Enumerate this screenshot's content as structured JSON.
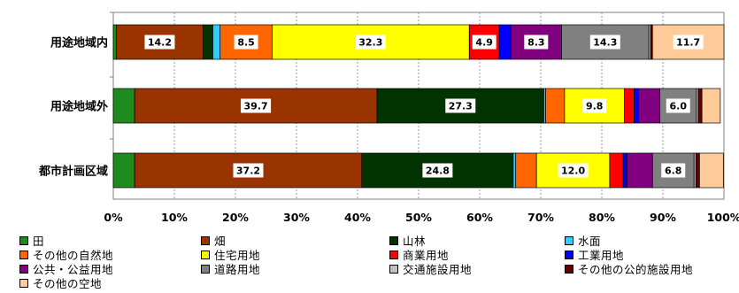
{
  "chart_data": {
    "type": "bar",
    "orientation": "horizontal",
    "stacked": true,
    "percent": true,
    "categories": [
      "用途地域内",
      "用途地域外",
      "都市計画区域"
    ],
    "xlim": [
      0,
      100
    ],
    "x_ticks": [
      "0%",
      "10%",
      "20%",
      "30%",
      "40%",
      "50%",
      "60%",
      "70%",
      "80%",
      "90%",
      "100%"
    ],
    "grid": "vertical dashed",
    "legend_position": "bottom",
    "series": [
      {
        "name": "田",
        "color": "#1f8b1f",
        "values": [
          0.5,
          3.5,
          3.5
        ]
      },
      {
        "name": "畑",
        "color": "#993300",
        "values": [
          14.2,
          39.7,
          37.2
        ]
      },
      {
        "name": "山林",
        "color": "#003300",
        "values": [
          1.6,
          27.3,
          24.8
        ]
      },
      {
        "name": "水面",
        "color": "#33ccff",
        "values": [
          1.2,
          0.3,
          0.4
        ]
      },
      {
        "name": "その他の自然地",
        "color": "#ff6600",
        "values": [
          8.5,
          3.1,
          3.4
        ]
      },
      {
        "name": "住宅用地",
        "color": "#ffff00",
        "values": [
          32.3,
          9.8,
          12.0
        ]
      },
      {
        "name": "商業用地",
        "color": "#ff0000",
        "values": [
          4.9,
          1.6,
          2.2
        ]
      },
      {
        "name": "工業用地",
        "color": "#0000ff",
        "values": [
          1.9,
          0.7,
          0.6
        ]
      },
      {
        "name": "公共・公益用地",
        "color": "#800080",
        "values": [
          8.3,
          3.5,
          4.2
        ]
      },
      {
        "name": "道路用地",
        "color": "#808080",
        "values": [
          14.3,
          6.0,
          6.8
        ]
      },
      {
        "name": "交通施設用地",
        "color": "#c0c0c0",
        "values": [
          0.3,
          0.3,
          0.3
        ]
      },
      {
        "name": "その他の公的施設用地",
        "color": "#660000",
        "values": [
          0.3,
          0.6,
          0.6
        ]
      },
      {
        "name": "その他の空地",
        "color": "#ffcc99",
        "values": [
          11.7,
          3.0,
          3.9
        ]
      }
    ],
    "data_labels": [
      {
        "bar": 0,
        "series": 1,
        "text": "14.2"
      },
      {
        "bar": 0,
        "series": 4,
        "text": "8.5"
      },
      {
        "bar": 0,
        "series": 5,
        "text": "32.3"
      },
      {
        "bar": 0,
        "series": 6,
        "text": "4.9"
      },
      {
        "bar": 0,
        "series": 8,
        "text": "8.3"
      },
      {
        "bar": 0,
        "series": 9,
        "text": "14.3"
      },
      {
        "bar": 0,
        "series": 12,
        "text": "11.7"
      },
      {
        "bar": 1,
        "series": 1,
        "text": "39.7"
      },
      {
        "bar": 1,
        "series": 2,
        "text": "27.3"
      },
      {
        "bar": 1,
        "series": 5,
        "text": "9.8"
      },
      {
        "bar": 1,
        "series": 9,
        "text": "6.0"
      },
      {
        "bar": 2,
        "series": 1,
        "text": "37.2"
      },
      {
        "bar": 2,
        "series": 2,
        "text": "24.8"
      },
      {
        "bar": 2,
        "series": 5,
        "text": "12.0"
      },
      {
        "bar": 2,
        "series": 9,
        "text": "6.8"
      }
    ]
  }
}
